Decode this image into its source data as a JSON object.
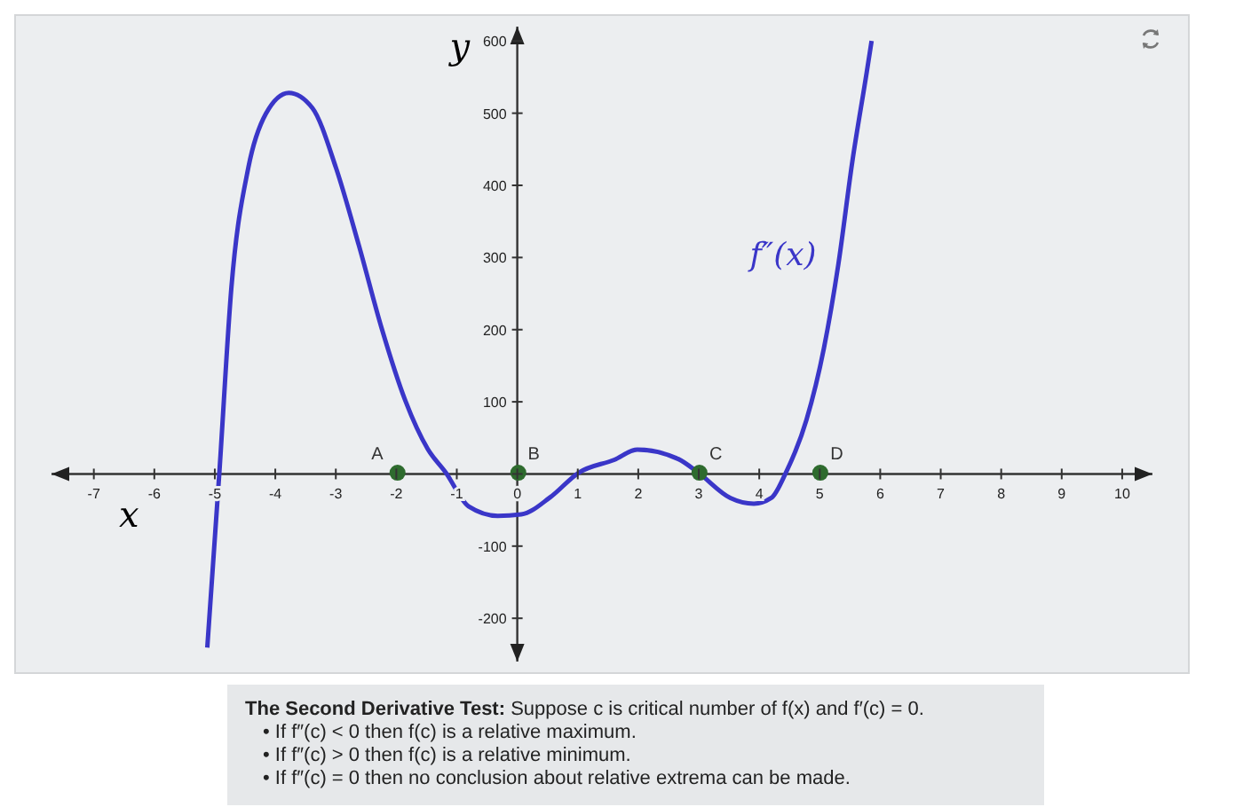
{
  "chart_data": {
    "type": "line",
    "xlabel": "x",
    "ylabel": "y",
    "xlim": [
      -7.7,
      10.5
    ],
    "ylim": [
      -260,
      620
    ],
    "xticks": [
      -7,
      -6,
      -5,
      -4,
      -3,
      -2,
      -1,
      0,
      1,
      2,
      3,
      4,
      5,
      6,
      7,
      8,
      9,
      10
    ],
    "yticks": [
      -200,
      -100,
      {
        "value": 0,
        "label": null
      },
      100,
      200,
      300,
      400,
      500,
      600
    ],
    "grid": false,
    "legend": false,
    "marker": "none",
    "line_style": "solid",
    "series": [
      {
        "name": "f″(x)",
        "color": "#3a36c8",
        "x": [
          -5.15,
          -4.95,
          -4.75,
          -4.47,
          -4.18,
          -3.8,
          -3.41,
          -3.02,
          -2.64,
          -2.26,
          -1.87,
          -1.5,
          -1.2,
          -0.82,
          -0.34,
          0.05,
          0.53,
          1.0,
          1.59,
          1.97,
          2.65,
          2.98,
          3.51,
          3.9,
          4.19,
          4.43,
          4.77,
          5.06,
          5.3,
          5.53,
          5.77,
          5.85
        ],
        "values": [
          -243,
          0,
          258,
          424,
          499,
          528,
          507,
          424,
          316,
          200,
          100,
          33,
          0,
          -47,
          -60,
          -58,
          -34,
          0,
          18,
          32,
          19,
          0,
          -35,
          -43,
          -35,
          0,
          73,
          173,
          290,
          432,
          557,
          600
        ]
      },
      {
        "type": "scatter",
        "color": "#2e6b2e",
        "marker": "circle",
        "x": [
          -2,
          0,
          3,
          5
        ],
        "values": [
          0,
          0,
          0,
          0
        ]
      }
    ],
    "annotations": [
      {
        "text": "A",
        "x": -2,
        "y": 0
      },
      {
        "text": "B",
        "x": 0,
        "y": 0
      },
      {
        "text": "C",
        "x": 3,
        "y": 0
      },
      {
        "text": "D",
        "x": 5,
        "y": 0
      },
      "The Second Derivative Test: Suppose c is critical number of f(x) and f′(c) = 0.",
      "• If f″(c) < 0 then f(c) is a relative maximum.",
      "• If f″(c) > 0 then f(c) is a relative minimum.",
      "• If f″(c) = 0 then no conclusion about relative extrema can be made."
    ]
  }
}
